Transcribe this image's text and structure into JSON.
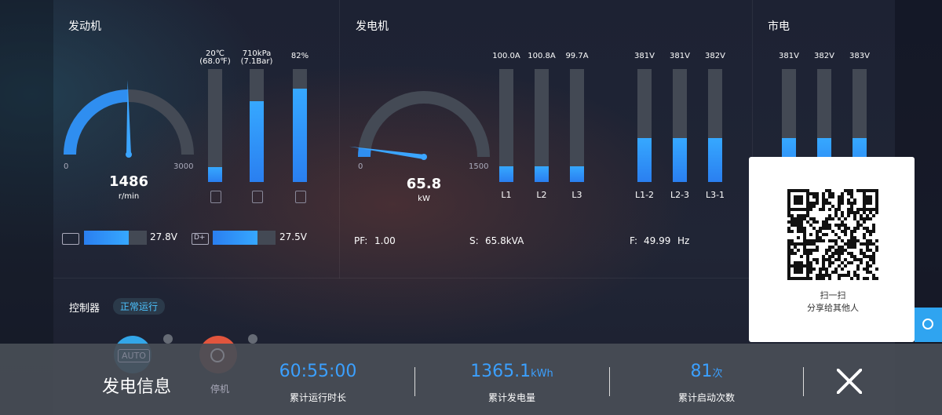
{
  "engine": {
    "title": "发动机",
    "gauge": {
      "min": 0,
      "max": 3000,
      "value": 1486,
      "unit": "r/min"
    },
    "bars": [
      {
        "label": [
          "20℃",
          "(68.0℉)"
        ]
      },
      {
        "label": [
          "710kPa",
          "(7.1Bar)"
        ]
      },
      {
        "label": [
          "82%"
        ]
      }
    ],
    "battery": {
      "d_label": "D+",
      "values": [
        "27.8V",
        "27.5V"
      ]
    }
  },
  "generator": {
    "title": "发电机",
    "gauge": {
      "min": 0,
      "max": 1500,
      "value": 65.8,
      "unit": "kW"
    },
    "currents": {
      "values": [
        "100.0A",
        "100.8A",
        "99.7A"
      ],
      "labels": [
        "L1",
        "L2",
        "L3"
      ]
    },
    "voltages": {
      "values": [
        "381V",
        "381V",
        "382V"
      ],
      "labels": [
        "L1-2",
        "L2-3",
        "L3-1"
      ]
    },
    "pf": {
      "label": "PF:",
      "value": "1.00"
    },
    "s": {
      "label": "S:",
      "value": "65.8kVA"
    },
    "f": {
      "label": "F:",
      "value": "49.99",
      "unit": "Hz"
    }
  },
  "mains": {
    "title": "市电",
    "voltages": [
      "381V",
      "382V",
      "383V"
    ]
  },
  "controller": {
    "title": "控制器",
    "status": "正常运行",
    "auto": "AUTO",
    "stop": "停机"
  },
  "footer": {
    "title": "发电信息",
    "stats": [
      {
        "value": "60:55:00",
        "label": "累计运行时长"
      },
      {
        "value": "1365.1",
        "unit": "kWh",
        "label": "累计发电量"
      },
      {
        "value": "81",
        "unit": "次",
        "label": "累计启动次数"
      }
    ]
  },
  "share": {
    "line1": "扫一扫",
    "line2": "分享给其他人"
  }
}
